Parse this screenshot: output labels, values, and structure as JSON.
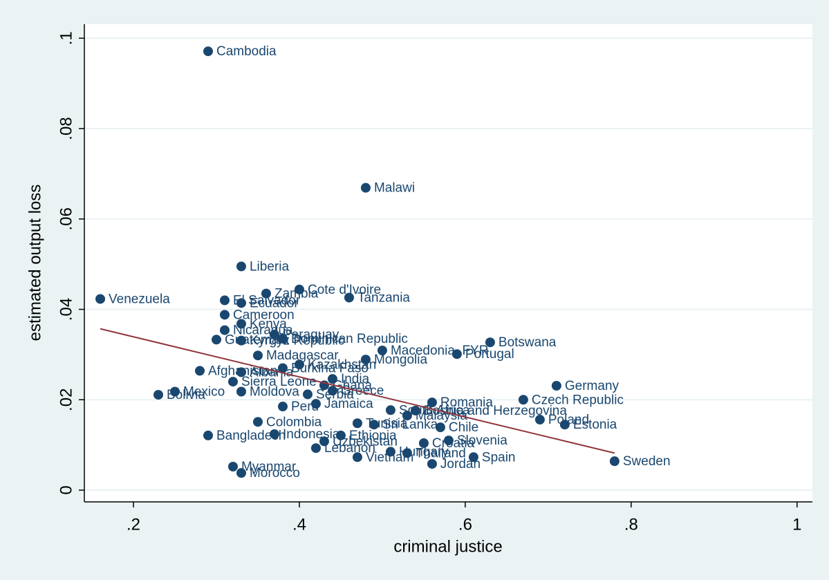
{
  "chart_data": {
    "type": "scatter",
    "xlabel": "criminal justice",
    "ylabel": "estimated output loss",
    "xlim": [
      0.1408,
      1.0185
    ],
    "ylim": [
      -0.0026,
      0.1031
    ],
    "xticks": [
      {
        "value": 0.2,
        "label": ".2"
      },
      {
        "value": 0.4,
        "label": ".4"
      },
      {
        "value": 0.6,
        "label": ".6"
      },
      {
        "value": 0.8,
        "label": ".8"
      },
      1
    ],
    "yticks": [
      0,
      {
        "value": 0.02,
        "label": ".02"
      },
      {
        "value": 0.04,
        "label": ".04"
      },
      {
        "value": 0.06,
        "label": ".06"
      },
      {
        "value": 0.08,
        "label": ".08"
      },
      {
        "value": 0.1,
        "label": ".1"
      }
    ],
    "grid": true,
    "color": "#1a476f",
    "labels": [
      "Cambodia",
      "Malawi",
      "Liberia",
      "Zambia",
      "Cote d'Ivoire",
      "Tanzania",
      "Venezuela",
      "El Salvador",
      "Ecuador",
      "Cameroon",
      "Kenya",
      "Nicaragua",
      "Guatemala",
      "Kyrgyz Republic",
      "Paraguay",
      "Dominican Republic",
      "Botswana",
      "Macedonia, FYR",
      "Portugal",
      "Madagascar",
      "Mongolia",
      "Kazakhstan",
      "Burkina Faso",
      "Afghanistan",
      "Albania",
      "India",
      "Sierra Leone",
      "Germany",
      "Ghana",
      "Greece",
      "Mexico",
      "Moldova",
      "Serbia",
      "Bolivia",
      "Czech Republic",
      "Romania",
      "Jamaica",
      "Peru",
      "South Africa",
      "Bosnia and Herzegovina",
      "Malaysia",
      "Poland",
      "Estonia",
      "Colombia",
      "Sri Lanka",
      "Tunisia",
      "Chile",
      "Bangladesh",
      "Indonesia",
      "Ethiopia",
      "Slovenia",
      "Croatia",
      "Uzbekistan",
      "Lebanon",
      "Hungary",
      "Thailand",
      "Vietnam",
      "Spain",
      "Jordan",
      "Sweden",
      "Myanmar",
      "Morocco"
    ],
    "x": [
      0.29,
      0.48,
      0.33,
      0.36,
      0.4,
      0.46,
      0.16,
      0.31,
      0.33,
      0.31,
      0.33,
      0.31,
      0.3,
      0.33,
      0.37,
      0.38,
      0.63,
      0.5,
      0.59,
      0.35,
      0.48,
      0.4,
      0.38,
      0.28,
      0.33,
      0.44,
      0.32,
      0.71,
      0.43,
      0.44,
      0.25,
      0.33,
      0.41,
      0.23,
      0.67,
      0.56,
      0.42,
      0.38,
      0.51,
      0.54,
      0.53,
      0.69,
      0.72,
      0.35,
      0.49,
      0.47,
      0.57,
      0.29,
      0.37,
      0.45,
      0.58,
      0.55,
      0.43,
      0.42,
      0.51,
      0.53,
      0.47,
      0.61,
      0.56,
      0.78,
      0.32,
      0.33
    ],
    "values": [
      0.0971,
      0.0669,
      0.0495,
      0.0435,
      0.0444,
      0.0426,
      0.0423,
      0.042,
      0.0414,
      0.0388,
      0.0368,
      0.0354,
      0.0333,
      0.0331,
      0.0344,
      0.0335,
      0.0327,
      0.0309,
      0.0301,
      0.0298,
      0.0289,
      0.0278,
      0.027,
      0.0264,
      0.0261,
      0.0246,
      0.024,
      0.0231,
      0.0232,
      0.022,
      0.0218,
      0.0218,
      0.0212,
      0.0211,
      0.02,
      0.0194,
      0.0191,
      0.0185,
      0.0177,
      0.0176,
      0.0165,
      0.0156,
      0.0145,
      0.0151,
      0.0145,
      0.0148,
      0.0139,
      0.0121,
      0.0124,
      0.0121,
      0.011,
      0.0104,
      0.0108,
      0.0093,
      0.0085,
      0.0082,
      0.0073,
      0.0073,
      0.0058,
      0.0064,
      0.0052,
      0.0038
    ],
    "fit": {
      "color": "#90353b",
      "x": [
        0.16,
        0.78
      ],
      "values": [
        0.0357,
        0.0082
      ]
    }
  }
}
